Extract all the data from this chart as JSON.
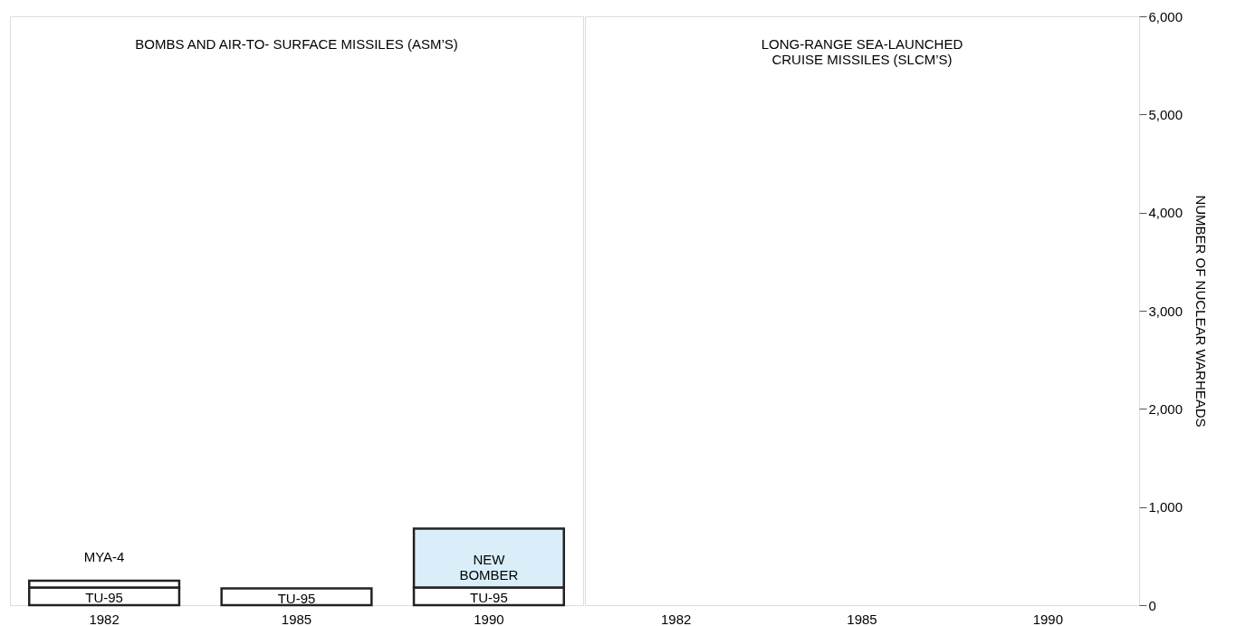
{
  "chart_data": [
    {
      "type": "bar",
      "title": "BOMBS AND AIR-TO- SURFACE MISSILES (ASM’S)",
      "categories": [
        "1982",
        "1985",
        "1990"
      ],
      "stacked": true,
      "ylim": [
        0,
        6000
      ],
      "tick_labels": "x",
      "grid": false,
      "series": [
        {
          "name": "TU-95",
          "color": "#ffffff",
          "values": [
            180,
            170,
            180
          ]
        },
        {
          "name": "MYA-4",
          "color": "#ffffff",
          "values": [
            70,
            null,
            null
          ]
        },
        {
          "name": "NEW BOMBER",
          "color": "#d9eef8",
          "values": [
            null,
            null,
            600
          ]
        }
      ]
    },
    {
      "type": "bar",
      "title": "LONG-RANGE SEA-LAUNCHED\nCRUISE MISSILES (SLCM’S)",
      "categories": [
        "1982",
        "1985",
        "1990"
      ],
      "values": [
        null,
        null,
        null
      ],
      "ylim": [
        0,
        6000
      ],
      "yticks": [
        0,
        {
          "value": 1000,
          "label": "1,000"
        },
        {
          "value": 2000,
          "label": "2,000"
        },
        {
          "value": 3000,
          "label": "3,000"
        },
        {
          "value": 4000,
          "label": "4,000"
        },
        {
          "value": 5000,
          "label": "5,000"
        },
        {
          "value": 6000,
          "label": "6,000"
        }
      ],
      "ylabel": "NUMBER OF NUCLEAR WARHEADS",
      "grid": false
    }
  ]
}
